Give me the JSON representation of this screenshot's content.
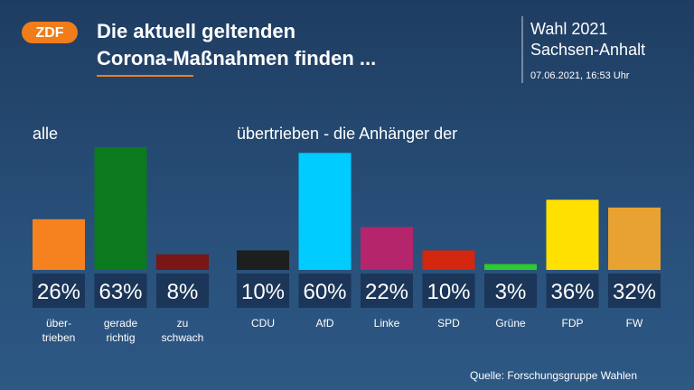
{
  "header": {
    "logo": "ZDF",
    "title": "Die aktuell geltenden\nCorona-Maßnahmen finden ...",
    "election": "Wahl 2021",
    "region": "Sachsen-Anhalt",
    "timestamp": "07.06.2021, 16:53 Uhr"
  },
  "chart_data": [
    {
      "type": "bar",
      "title": "alle",
      "categories": [
        "über-\ntrieben",
        "gerade\nrichtig",
        "zu\nschwach"
      ],
      "values": [
        26,
        63,
        8
      ],
      "value_labels": [
        "26%",
        "63%",
        "8%"
      ],
      "colors": [
        "#f5821f",
        "#0b7a1f",
        "#7a1616"
      ]
    },
    {
      "type": "bar",
      "title": "übertrieben - die Anhänger der",
      "categories": [
        "CDU",
        "AfD",
        "Linke",
        "SPD",
        "Grüne",
        "FDP",
        "FW"
      ],
      "values": [
        10,
        60,
        22,
        10,
        3,
        36,
        32
      ],
      "value_labels": [
        "10%",
        "60%",
        "22%",
        "10%",
        "3%",
        "36%",
        "32%"
      ],
      "colors": [
        "#1e1e1e",
        "#00ccff",
        "#b5256c",
        "#d2260f",
        "#2ecc2e",
        "#ffe000",
        "#e8a232"
      ]
    }
  ],
  "footer": {
    "source": "Quelle: Forschungsgruppe Wahlen"
  }
}
